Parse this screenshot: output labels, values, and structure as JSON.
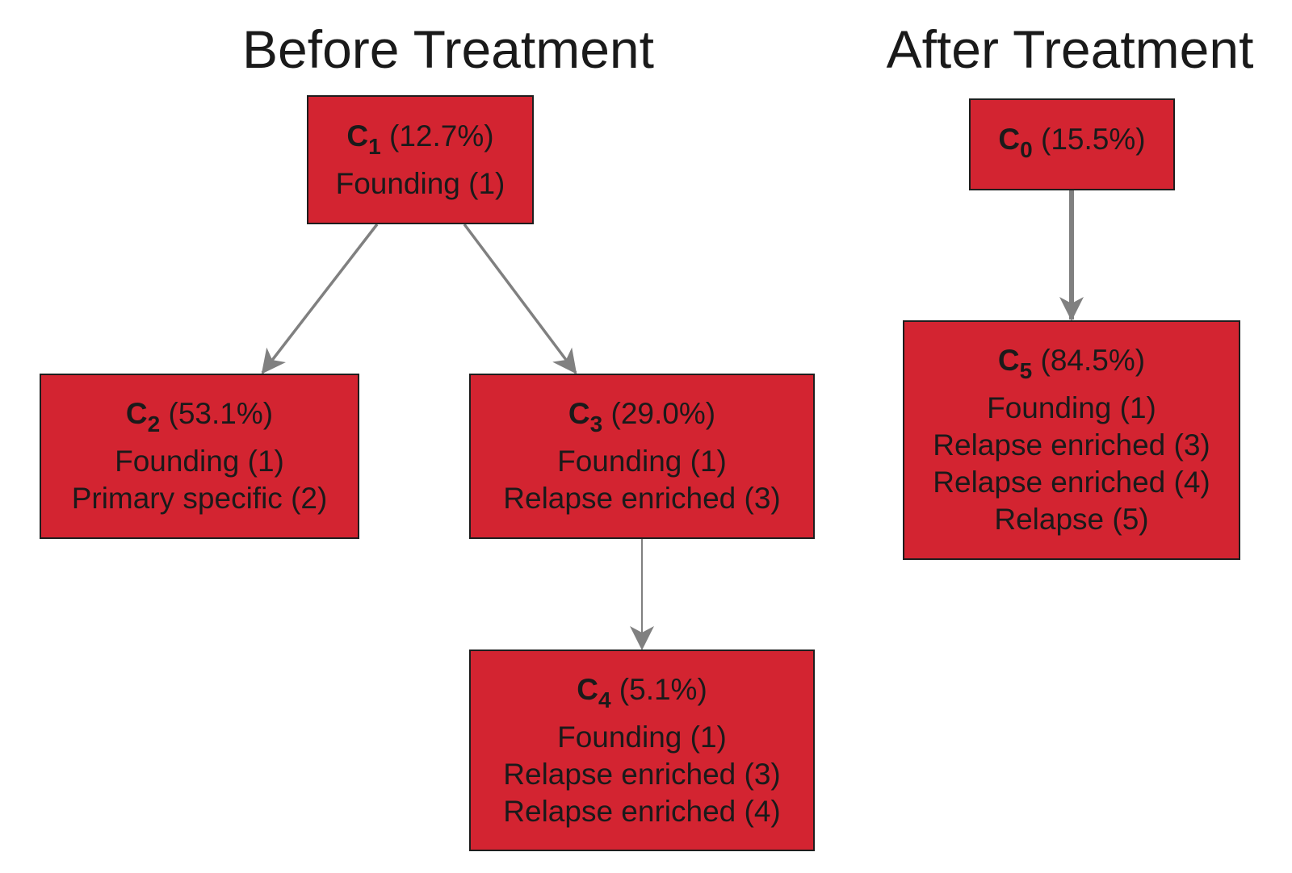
{
  "titles": {
    "before": "Before Treatment",
    "after": "After Treatment"
  },
  "colors": {
    "node_fill": "#d32431",
    "node_border": "#1e1e1e",
    "edge": "#808080"
  },
  "nodes": {
    "c1": {
      "letter": "C",
      "index": "1",
      "percent": "(12.7%)",
      "lines": [
        "Founding (1)"
      ]
    },
    "c2": {
      "letter": "C",
      "index": "2",
      "percent": "(53.1%)",
      "lines": [
        "Founding (1)",
        "Primary specific (2)"
      ]
    },
    "c3": {
      "letter": "C",
      "index": "3",
      "percent": "(29.0%)",
      "lines": [
        "Founding (1)",
        "Relapse enriched (3)"
      ]
    },
    "c4": {
      "letter": "C",
      "index": "4",
      "percent": "(5.1%)",
      "lines": [
        "Founding (1)",
        "Relapse enriched (3)",
        "Relapse enriched (4)"
      ]
    },
    "c0": {
      "letter": "C",
      "index": "0",
      "percent": "(15.5%)",
      "lines": []
    },
    "c5": {
      "letter": "C",
      "index": "5",
      "percent": "(84.5%)",
      "lines": [
        "Founding (1)",
        "Relapse enriched (3)",
        "Relapse enriched (4)",
        "Relapse (5)"
      ]
    }
  },
  "edges": [
    {
      "from": "c1",
      "to": "c2"
    },
    {
      "from": "c1",
      "to": "c3"
    },
    {
      "from": "c3",
      "to": "c4"
    },
    {
      "from": "c0",
      "to": "c5"
    }
  ]
}
